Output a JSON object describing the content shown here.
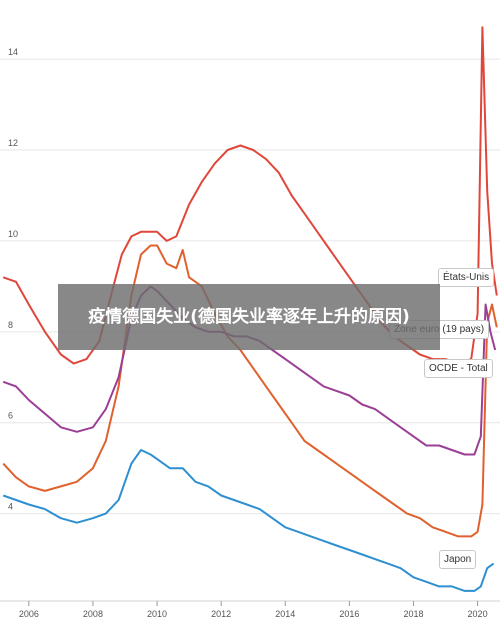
{
  "overlay_title": "疫情德国失业(德国失业率逐年上升的原因)",
  "chart_data": {
    "type": "line",
    "title": "",
    "xlabel": "",
    "ylabel": "",
    "xlim": [
      2005.1,
      2020.7
    ],
    "ylim": [
      2.1,
      15.3
    ],
    "x_ticks": [
      "2006",
      "2008",
      "2010",
      "2012",
      "2014",
      "2016",
      "2018",
      "2020"
    ],
    "y_ticks": [
      "4",
      "6",
      "8",
      "10",
      "12",
      "14"
    ],
    "grid": "horizontal",
    "series": [
      {
        "name": "États-Unis",
        "color": "#e0473b",
        "x": [
          2005.2,
          2005.6,
          2006.0,
          2006.5,
          2007.0,
          2007.4,
          2007.8,
          2008.2,
          2008.6,
          2008.9,
          2009.2,
          2009.5,
          2009.8,
          2010.0,
          2010.3,
          2010.6,
          2011.0,
          2011.4,
          2011.8,
          2012.2,
          2012.6,
          2013.0,
          2013.4,
          2013.8,
          2014.2,
          2014.6,
          2015.0,
          2015.4,
          2015.8,
          2016.2,
          2016.6,
          2017.0,
          2017.4,
          2017.8,
          2018.2,
          2018.6,
          2019.0,
          2019.4,
          2019.8,
          2020.0,
          2020.15,
          2020.3,
          2020.45,
          2020.6
        ],
        "values": [
          9.2,
          9.1,
          8.6,
          8.0,
          7.5,
          7.3,
          7.4,
          7.8,
          8.9,
          9.7,
          10.1,
          10.2,
          10.2,
          10.2,
          10.0,
          10.1,
          10.8,
          11.3,
          11.7,
          12.0,
          12.1,
          12.0,
          11.8,
          11.5,
          11.0,
          10.6,
          10.2,
          9.8,
          9.4,
          9.0,
          8.6,
          8.2,
          7.9,
          7.7,
          7.5,
          7.4,
          7.4,
          7.3,
          7.4,
          8.4,
          14.7,
          11.1,
          9.5,
          8.8
        ]
      },
      {
        "name": "Zone euro (19 pays)",
        "color": "#e0612d",
        "x": [
          2005.2,
          2005.6,
          2006.0,
          2006.5,
          2007.0,
          2007.5,
          2008.0,
          2008.4,
          2008.8,
          2009.2,
          2009.5,
          2009.8,
          2010.0,
          2010.3,
          2010.6,
          2010.8,
          2011.0,
          2011.4,
          2011.8,
          2012.2,
          2012.6,
          2013.0,
          2013.4,
          2013.8,
          2014.2,
          2014.6,
          2015.0,
          2015.4,
          2015.8,
          2016.2,
          2016.6,
          2017.0,
          2017.4,
          2017.8,
          2018.2,
          2018.6,
          2019.0,
          2019.4,
          2019.8,
          2020.0,
          2020.15,
          2020.3,
          2020.45,
          2020.6
        ],
        "values": [
          5.1,
          4.8,
          4.6,
          4.5,
          4.6,
          4.7,
          5.0,
          5.6,
          6.8,
          8.8,
          9.7,
          9.9,
          9.9,
          9.5,
          9.4,
          9.8,
          9.2,
          9.0,
          8.4,
          7.9,
          7.6,
          7.2,
          6.8,
          6.4,
          6.0,
          5.6,
          5.4,
          5.2,
          5.0,
          4.8,
          4.6,
          4.4,
          4.2,
          4.0,
          3.9,
          3.7,
          3.6,
          3.5,
          3.5,
          3.6,
          4.2,
          8.2,
          8.6,
          8.1
        ]
      },
      {
        "name": "OCDE - Total",
        "color": "#9b3f96",
        "x": [
          2005.2,
          2005.6,
          2006.0,
          2006.5,
          2007.0,
          2007.5,
          2008.0,
          2008.4,
          2008.8,
          2009.2,
          2009.5,
          2009.8,
          2010.0,
          2010.4,
          2010.8,
          2011.2,
          2011.6,
          2012.0,
          2012.4,
          2012.8,
          2013.2,
          2013.6,
          2014.0,
          2014.4,
          2014.8,
          2015.2,
          2015.6,
          2016.0,
          2016.4,
          2016.8,
          2017.2,
          2017.6,
          2018.0,
          2018.4,
          2018.8,
          2019.2,
          2019.6,
          2019.9,
          2020.1,
          2020.25,
          2020.4,
          2020.55
        ],
        "values": [
          6.9,
          6.8,
          6.5,
          6.2,
          5.9,
          5.8,
          5.9,
          6.3,
          7.0,
          8.3,
          8.8,
          9.0,
          8.9,
          8.6,
          8.3,
          8.1,
          8.0,
          8.0,
          7.9,
          7.9,
          7.8,
          7.6,
          7.4,
          7.2,
          7.0,
          6.8,
          6.7,
          6.6,
          6.4,
          6.3,
          6.1,
          5.9,
          5.7,
          5.5,
          5.5,
          5.4,
          5.3,
          5.3,
          5.7,
          8.6,
          8.0,
          7.6
        ]
      },
      {
        "name": "Japon",
        "color": "#2e8fd1",
        "x": [
          2005.2,
          2005.6,
          2006.0,
          2006.5,
          2007.0,
          2007.5,
          2008.0,
          2008.4,
          2008.8,
          2009.2,
          2009.5,
          2009.8,
          2010.0,
          2010.4,
          2010.8,
          2011.2,
          2011.6,
          2012.0,
          2012.4,
          2012.8,
          2013.2,
          2013.6,
          2014.0,
          2014.4,
          2014.8,
          2015.2,
          2015.6,
          2016.0,
          2016.4,
          2016.8,
          2017.2,
          2017.6,
          2018.0,
          2018.4,
          2018.8,
          2019.2,
          2019.6,
          2019.9,
          2020.1,
          2020.3,
          2020.5
        ],
        "values": [
          4.4,
          4.3,
          4.2,
          4.1,
          3.9,
          3.8,
          3.9,
          4.0,
          4.3,
          5.1,
          5.4,
          5.3,
          5.2,
          5.0,
          5.0,
          4.7,
          4.6,
          4.4,
          4.3,
          4.2,
          4.1,
          3.9,
          3.7,
          3.6,
          3.5,
          3.4,
          3.3,
          3.2,
          3.1,
          3.0,
          2.9,
          2.8,
          2.6,
          2.5,
          2.4,
          2.4,
          2.3,
          2.3,
          2.4,
          2.8,
          2.9
        ]
      }
    ]
  }
}
